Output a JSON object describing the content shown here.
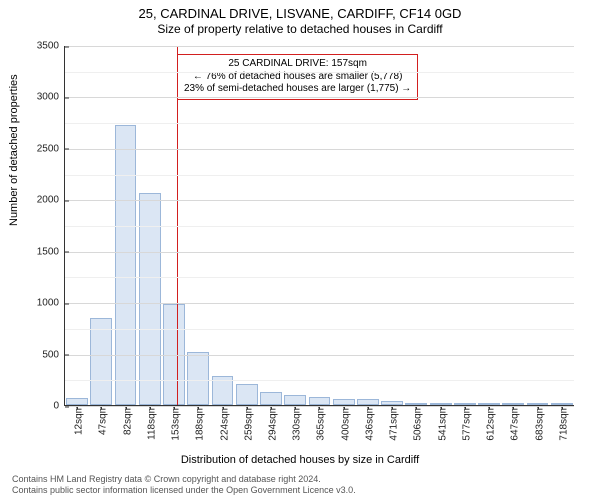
{
  "titles": {
    "line1": "25, CARDINAL DRIVE, LISVANE, CARDIFF, CF14 0GD",
    "line2": "Size of property relative to detached houses in Cardiff"
  },
  "chart": {
    "type": "histogram",
    "ylim": [
      0,
      3500
    ],
    "ytick_step": 500,
    "yticks": [
      0,
      500,
      1000,
      1500,
      2000,
      2500,
      3000,
      3500
    ],
    "grid_color": "#d8d8d8",
    "grid_minor_color": "#efefef",
    "bar_fill": "#dbe6f4",
    "bar_stroke": "#9cb7d9",
    "background_color": "#ffffff",
    "axis_color": "#333333",
    "ylabel": "Number of detached properties",
    "xlabel": "Distribution of detached houses by size in Cardiff",
    "label_fontsize": 11,
    "tick_fontsize": 10,
    "categories": [
      "12sqm",
      "47sqm",
      "82sqm",
      "118sqm",
      "153sqm",
      "188sqm",
      "224sqm",
      "259sqm",
      "294sqm",
      "330sqm",
      "365sqm",
      "400sqm",
      "436sqm",
      "471sqm",
      "506sqm",
      "541sqm",
      "577sqm",
      "612sqm",
      "647sqm",
      "683sqm",
      "718sqm"
    ],
    "values": [
      70,
      850,
      2720,
      2060,
      980,
      520,
      280,
      200,
      130,
      95,
      80,
      60,
      55,
      40,
      10,
      8,
      6,
      5,
      4,
      3,
      2
    ],
    "reference": {
      "value_sqm": 157,
      "fractional_index": 4.11,
      "color": "#d21f1f",
      "line_width": 1.5
    },
    "annotation": {
      "line1": "25 CARDINAL DRIVE: 157sqm",
      "line2": "← 76% of detached houses are smaller (5,778)",
      "line3": "23% of semi-detached houses are larger (1,775) →",
      "border_color": "#d21f1f",
      "text_color": "#000000",
      "fontsize": 10
    }
  },
  "footer": {
    "line1": "Contains HM Land Registry data © Crown copyright and database right 2024.",
    "line2": "Contains public sector information licensed under the Open Government Licence v3.0."
  }
}
